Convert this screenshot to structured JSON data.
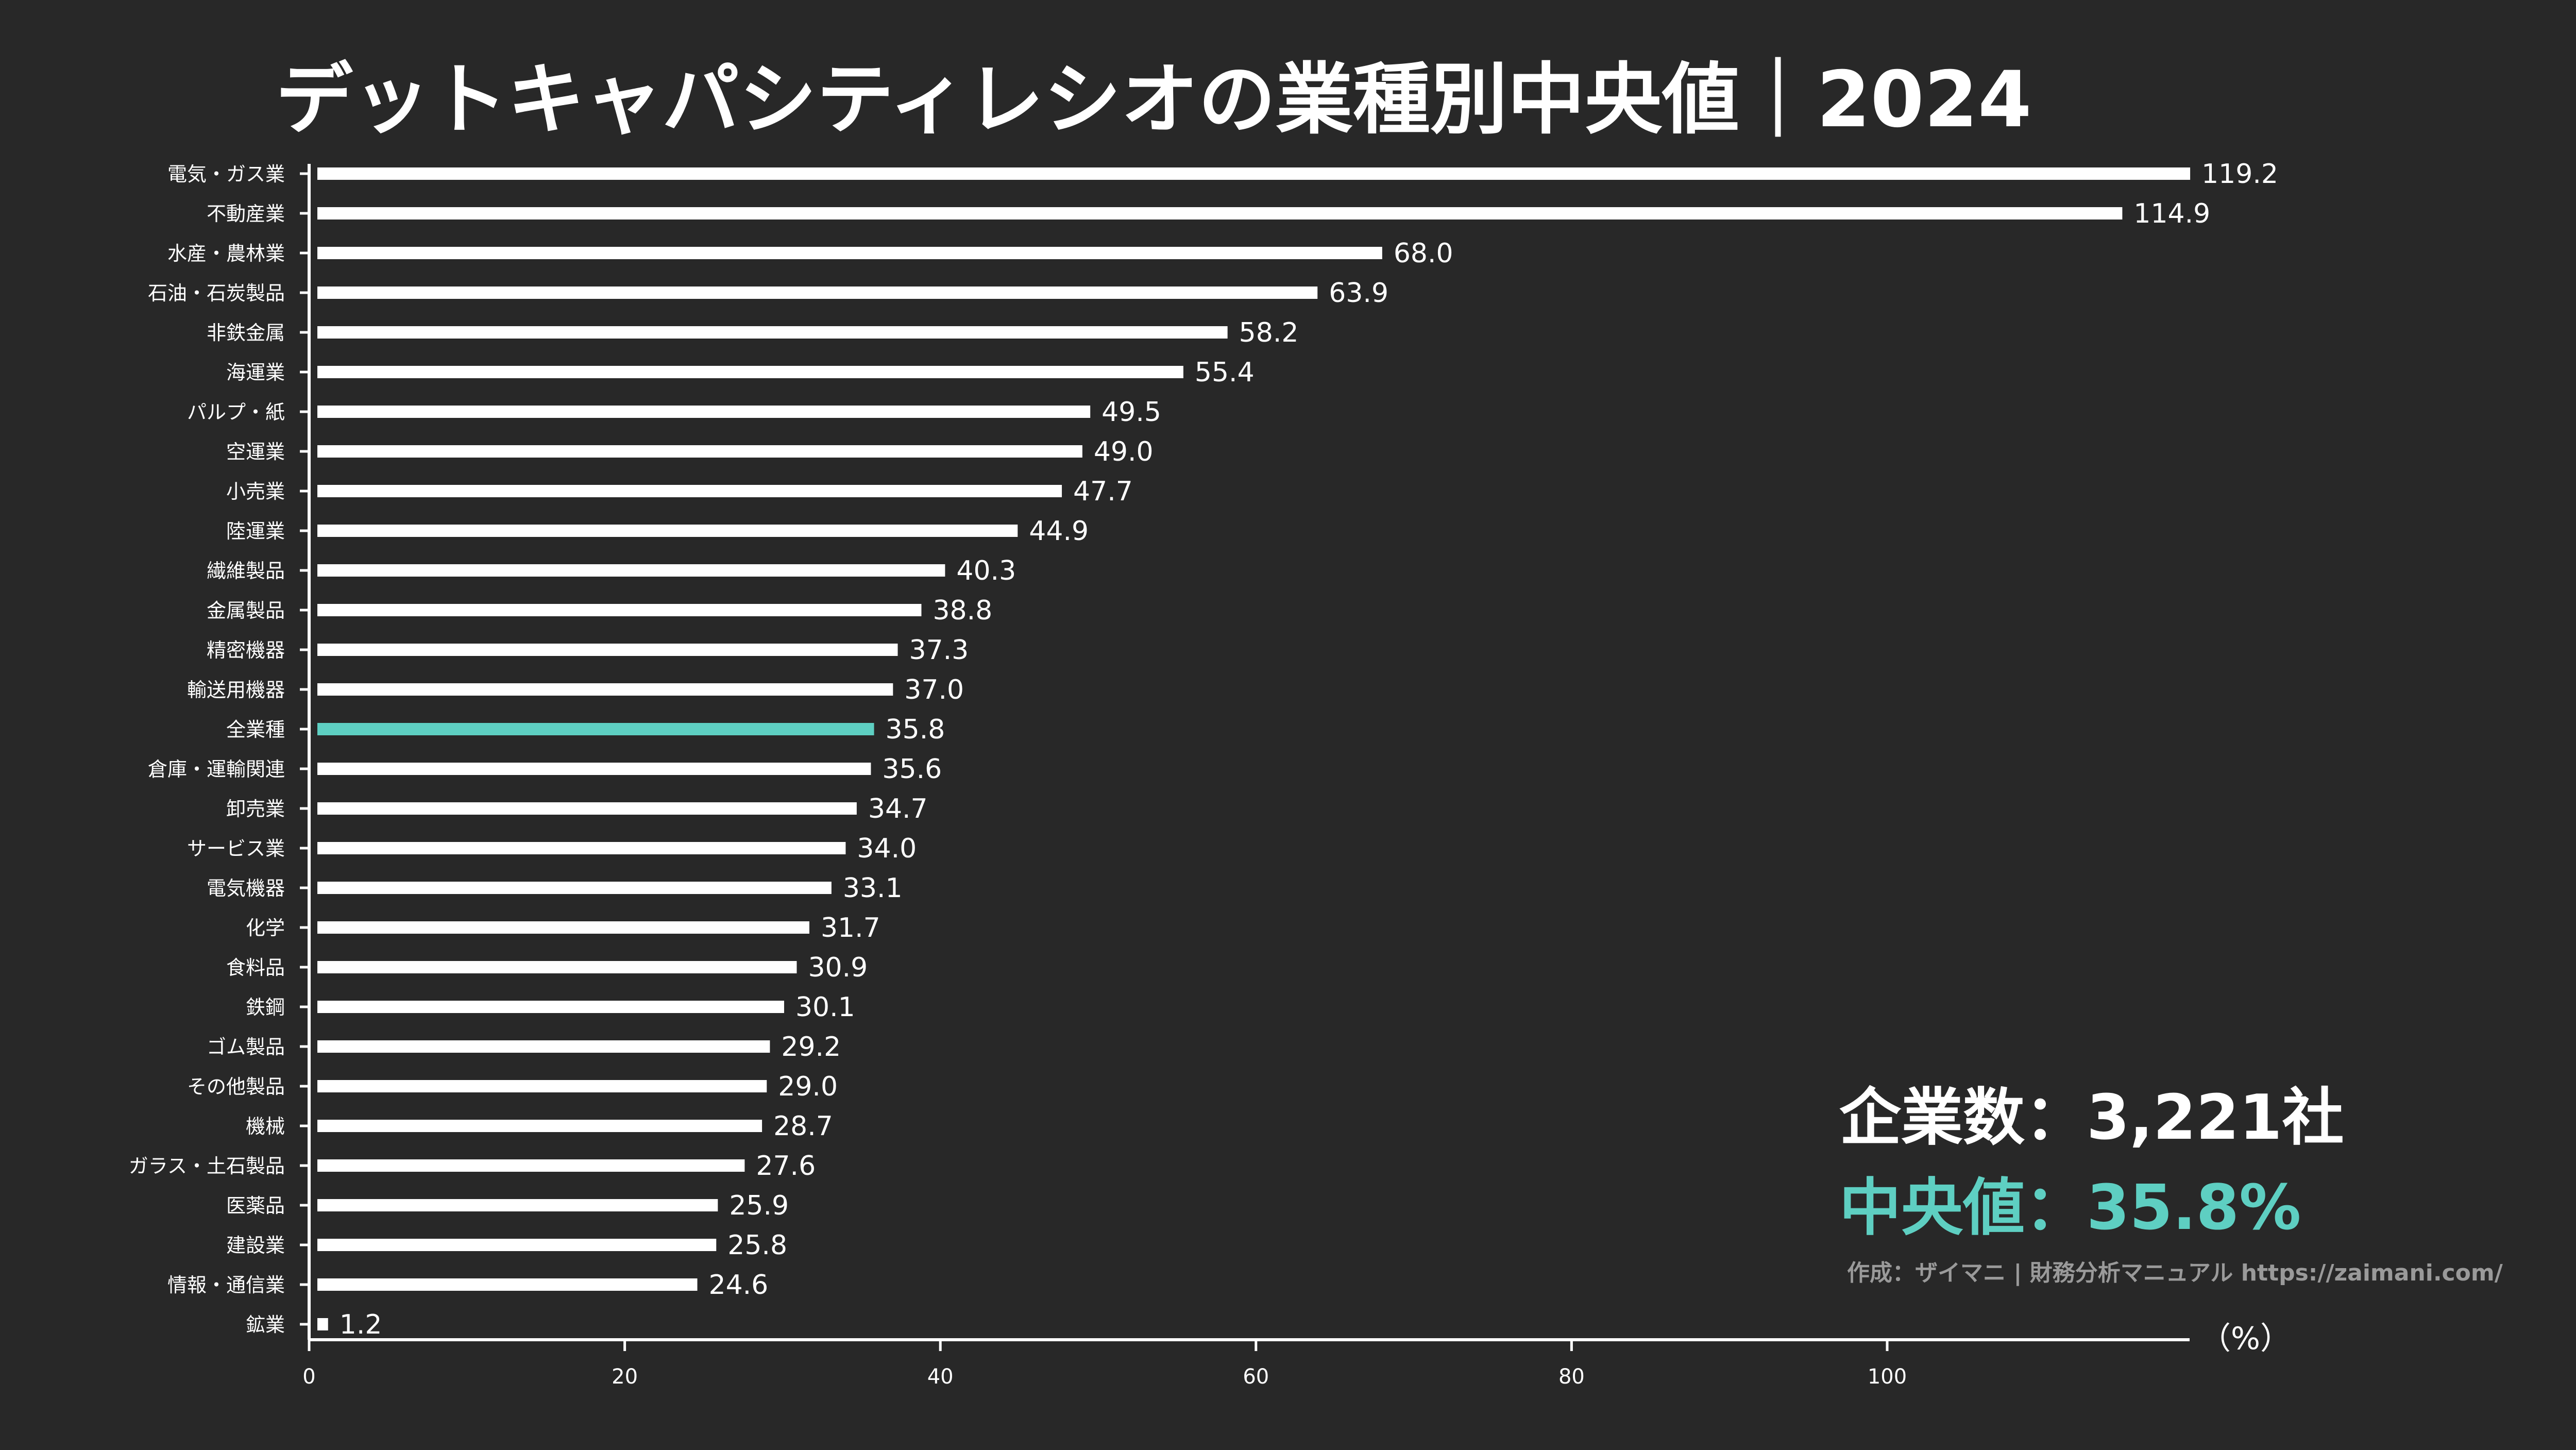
{
  "colors": {
    "background": "#282828",
    "bar": "#ffffff",
    "highlight": "#5ecfc2",
    "axis": "#ffffff",
    "credit": "#9a9a9a"
  },
  "info": {
    "company_count": "企業数：3,221社",
    "median": "中央値：35.8%",
    "credit": "作成：ザイマニ | 財務分析マニュアル https://zaimani.com/"
  },
  "chart_data": {
    "type": "bar",
    "orientation": "horizontal",
    "title": "デットキャパシティレシオの業種別中央値｜2024",
    "xlabel": "（%）",
    "ylabel": "",
    "xlim": [
      0,
      119.2
    ],
    "xticks": [
      0,
      20,
      40,
      60,
      80,
      100
    ],
    "highlight_category": "全業種",
    "categories": [
      "電気・ガス業",
      "不動産業",
      "水産・農林業",
      "石油・石炭製品",
      "非鉄金属",
      "海運業",
      "パルプ・紙",
      "空運業",
      "小売業",
      "陸運業",
      "繊維製品",
      "金属製品",
      "精密機器",
      "輸送用機器",
      "全業種",
      "倉庫・運輸関連",
      "卸売業",
      "サービス業",
      "電気機器",
      "化学",
      "食料品",
      "鉄鋼",
      "ゴム製品",
      "その他製品",
      "機械",
      "ガラス・土石製品",
      "医薬品",
      "建設業",
      "情報・通信業",
      "鉱業"
    ],
    "values": [
      119.2,
      114.9,
      68.0,
      63.9,
      58.2,
      55.4,
      49.5,
      49.0,
      47.7,
      44.9,
      40.3,
      38.8,
      37.3,
      37.0,
      35.8,
      35.6,
      34.7,
      34.0,
      33.1,
      31.7,
      30.9,
      30.1,
      29.2,
      29.0,
      28.7,
      27.6,
      25.9,
      25.8,
      24.6,
      1.2
    ],
    "value_labels": [
      "119.2",
      "114.9",
      "68.0",
      "63.9",
      "58.2",
      "55.4",
      "49.5",
      "49.0",
      "47.7",
      "44.9",
      "40.3",
      "38.8",
      "37.3",
      "37.0",
      "35.8",
      "35.6",
      "34.7",
      "34.0",
      "33.1",
      "31.7",
      "30.9",
      "30.1",
      "29.2",
      "29.0",
      "28.7",
      "27.6",
      "25.9",
      "25.8",
      "24.6",
      "1.2"
    ]
  }
}
